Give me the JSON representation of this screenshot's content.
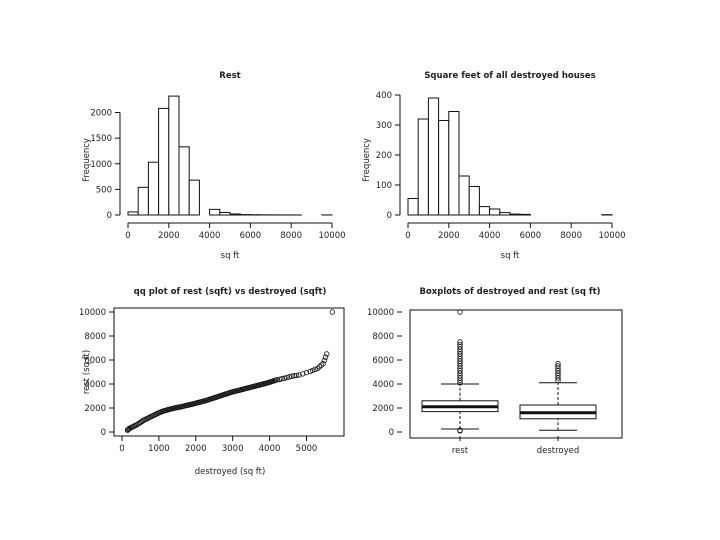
{
  "chart_data": [
    {
      "type": "bar",
      "subtype": "histogram",
      "title": "Rest",
      "xlabel": "sq ft",
      "ylabel": "Frequency",
      "xlim": [
        0,
        10000
      ],
      "ylim": [
        0,
        2400
      ],
      "xticks": [
        0,
        2000,
        4000,
        6000,
        8000,
        10000
      ],
      "yticks": [
        0,
        500,
        1000,
        1500,
        2000
      ],
      "bins": [
        {
          "x0": 0,
          "x1": 500,
          "count": 60
        },
        {
          "x0": 500,
          "x1": 1000,
          "count": 540
        },
        {
          "x0": 1000,
          "x1": 1500,
          "count": 1030
        },
        {
          "x0": 1500,
          "x1": 2000,
          "count": 2080
        },
        {
          "x0": 2000,
          "x1": 2500,
          "count": 2320
        },
        {
          "x0": 2500,
          "x1": 3000,
          "count": 1330
        },
        {
          "x0": 3000,
          "x1": 3500,
          "count": 680
        },
        {
          "x0": 3500,
          "x1": 4000,
          "count": 0
        },
        {
          "x0": 4000,
          "x1": 4500,
          "count": 110
        },
        {
          "x0": 4500,
          "x1": 5000,
          "count": 50
        },
        {
          "x0": 5000,
          "x1": 5500,
          "count": 20
        },
        {
          "x0": 5500,
          "x1": 6000,
          "count": 8
        },
        {
          "x0": 6000,
          "x1": 6500,
          "count": 5
        },
        {
          "x0": 6500,
          "x1": 7000,
          "count": 3
        },
        {
          "x0": 7000,
          "x1": 7500,
          "count": 2
        },
        {
          "x0": 7500,
          "x1": 8000,
          "count": 1
        },
        {
          "x0": 8000,
          "x1": 8500,
          "count": 1
        },
        {
          "x0": 8500,
          "x1": 9000,
          "count": 0
        },
        {
          "x0": 9000,
          "x1": 9500,
          "count": 0
        },
        {
          "x0": 9500,
          "x1": 10000,
          "count": 1
        }
      ]
    },
    {
      "type": "bar",
      "subtype": "histogram",
      "title": "Square feet of all destroyed houses",
      "xlabel": "sq ft",
      "ylabel": "Frequency",
      "xlim": [
        0,
        10000
      ],
      "ylim": [
        0,
        410
      ],
      "xticks": [
        0,
        2000,
        4000,
        6000,
        8000,
        10000
      ],
      "yticks": [
        0,
        100,
        200,
        300,
        400
      ],
      "bins": [
        {
          "x0": 0,
          "x1": 500,
          "count": 55
        },
        {
          "x0": 500,
          "x1": 1000,
          "count": 320
        },
        {
          "x0": 1000,
          "x1": 1500,
          "count": 390
        },
        {
          "x0": 1500,
          "x1": 2000,
          "count": 315
        },
        {
          "x0": 2000,
          "x1": 2500,
          "count": 345
        },
        {
          "x0": 2500,
          "x1": 3000,
          "count": 130
        },
        {
          "x0": 3000,
          "x1": 3500,
          "count": 95
        },
        {
          "x0": 3500,
          "x1": 4000,
          "count": 28
        },
        {
          "x0": 4000,
          "x1": 4500,
          "count": 20
        },
        {
          "x0": 4500,
          "x1": 5000,
          "count": 8
        },
        {
          "x0": 5000,
          "x1": 5500,
          "count": 3
        },
        {
          "x0": 5500,
          "x1": 6000,
          "count": 2
        },
        {
          "x0": 6000,
          "x1": 6500,
          "count": 0
        },
        {
          "x0": 6500,
          "x1": 7000,
          "count": 0
        },
        {
          "x0": 7000,
          "x1": 7500,
          "count": 0
        },
        {
          "x0": 7500,
          "x1": 8000,
          "count": 0
        },
        {
          "x0": 8000,
          "x1": 8500,
          "count": 0
        },
        {
          "x0": 8500,
          "x1": 9000,
          "count": 0
        },
        {
          "x0": 9000,
          "x1": 9500,
          "count": 0
        },
        {
          "x0": 9500,
          "x1": 10000,
          "count": 1
        }
      ]
    },
    {
      "type": "scatter",
      "subtype": "qq",
      "title": "qq plot of rest (sqft) vs destroyed (sqft)",
      "xlabel": "destroyed (sq ft)",
      "ylabel": "rest (sq ft)",
      "xlim": [
        0,
        5800
      ],
      "ylim": [
        0,
        10000
      ],
      "xticks": [
        0,
        1000,
        2000,
        3000,
        4000,
        5000
      ],
      "yticks": [
        0,
        2000,
        4000,
        6000,
        8000,
        10000
      ],
      "points": [
        {
          "x": 150,
          "y": 150
        },
        {
          "x": 200,
          "y": 300
        },
        {
          "x": 300,
          "y": 450
        },
        {
          "x": 400,
          "y": 600
        },
        {
          "x": 500,
          "y": 800
        },
        {
          "x": 600,
          "y": 1000
        },
        {
          "x": 700,
          "y": 1150
        },
        {
          "x": 800,
          "y": 1300
        },
        {
          "x": 900,
          "y": 1450
        },
        {
          "x": 1000,
          "y": 1600
        },
        {
          "x": 1100,
          "y": 1720
        },
        {
          "x": 1200,
          "y": 1820
        },
        {
          "x": 1300,
          "y": 1900
        },
        {
          "x": 1400,
          "y": 1980
        },
        {
          "x": 1500,
          "y": 2050
        },
        {
          "x": 1600,
          "y": 2100
        },
        {
          "x": 1700,
          "y": 2180
        },
        {
          "x": 1800,
          "y": 2250
        },
        {
          "x": 1900,
          "y": 2320
        },
        {
          "x": 2000,
          "y": 2400
        },
        {
          "x": 2100,
          "y": 2480
        },
        {
          "x": 2200,
          "y": 2560
        },
        {
          "x": 2300,
          "y": 2650
        },
        {
          "x": 2400,
          "y": 2750
        },
        {
          "x": 2500,
          "y": 2850
        },
        {
          "x": 2600,
          "y": 2950
        },
        {
          "x": 2700,
          "y": 3050
        },
        {
          "x": 2800,
          "y": 3150
        },
        {
          "x": 2900,
          "y": 3250
        },
        {
          "x": 3000,
          "y": 3350
        },
        {
          "x": 3100,
          "y": 3420
        },
        {
          "x": 3200,
          "y": 3500
        },
        {
          "x": 3300,
          "y": 3580
        },
        {
          "x": 3400,
          "y": 3660
        },
        {
          "x": 3500,
          "y": 3740
        },
        {
          "x": 3600,
          "y": 3820
        },
        {
          "x": 3700,
          "y": 3900
        },
        {
          "x": 3800,
          "y": 3980
        },
        {
          "x": 3900,
          "y": 4060
        },
        {
          "x": 4000,
          "y": 4150
        },
        {
          "x": 4100,
          "y": 4250
        },
        {
          "x": 4200,
          "y": 4350
        },
        {
          "x": 4400,
          "y": 4480
        },
        {
          "x": 4600,
          "y": 4650
        },
        {
          "x": 4800,
          "y": 4750
        },
        {
          "x": 5100,
          "y": 5050
        },
        {
          "x": 5300,
          "y": 5300
        },
        {
          "x": 5450,
          "y": 5700
        },
        {
          "x": 5550,
          "y": 6500
        },
        {
          "x": 5700,
          "y": 10000
        }
      ]
    },
    {
      "type": "box",
      "title": "Boxplots of destroyed and rest (sq ft)",
      "xlabel": "",
      "ylabel": "",
      "ylim": [
        0,
        10000
      ],
      "yticks": [
        0,
        2000,
        4000,
        6000,
        8000,
        10000
      ],
      "categories": [
        "rest",
        "destroyed"
      ],
      "boxes": [
        {
          "name": "rest",
          "whisker_low": 250,
          "q1": 1700,
          "median": 2100,
          "q3": 2600,
          "whisker_high": 4000,
          "outliers": [
            100,
            150,
            4100,
            4300,
            4500,
            4700,
            4900,
            5100,
            5300,
            5500,
            5700,
            5900,
            6100,
            6300,
            6500,
            6700,
            6900,
            7100,
            7300,
            7500,
            10000
          ]
        },
        {
          "name": "destroyed",
          "whisker_low": 150,
          "q1": 1100,
          "median": 1600,
          "q3": 2250,
          "whisker_high": 4100,
          "outliers": [
            4300,
            4500,
            4700,
            4900,
            5100,
            5300,
            5500,
            5700
          ]
        }
      ]
    }
  ]
}
